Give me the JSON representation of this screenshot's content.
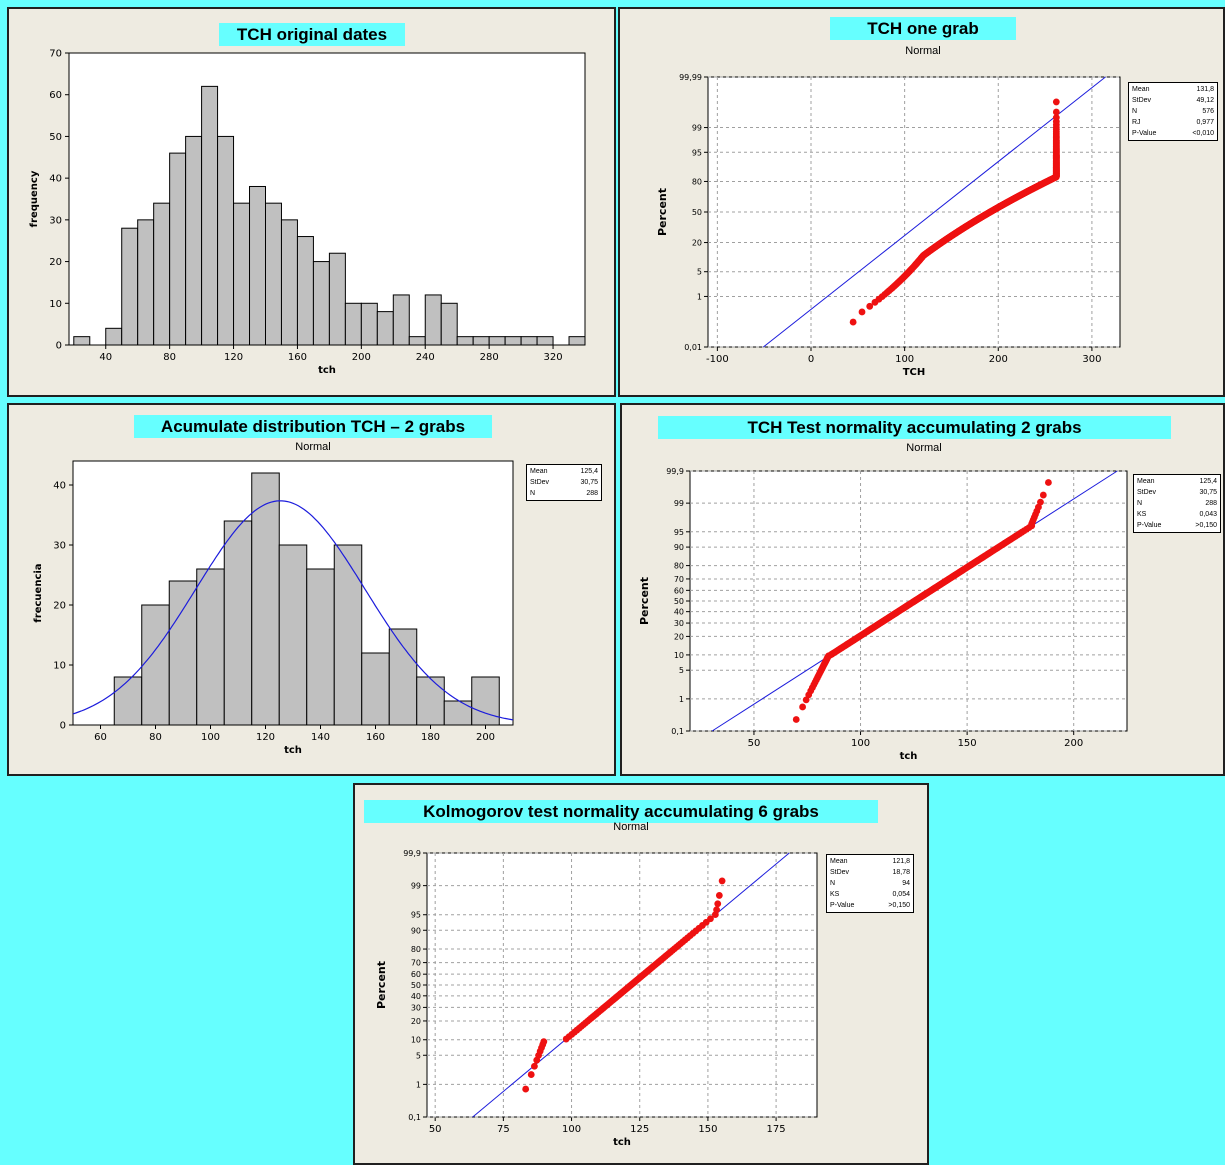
{
  "colors": {
    "background": "#66ffff",
    "panel": "#eeebe1",
    "bar": "#c0c0c0",
    "fit": "#1c1cdc",
    "point": "#ee1111"
  },
  "panels": {
    "p1": {
      "title": "TCH original dates"
    },
    "p2": {
      "title": "TCH one grab",
      "subtitle": "Normal"
    },
    "p3": {
      "title": "Acumulate distribution TCH – 2 grabs",
      "subtitle": "Normal"
    },
    "p4": {
      "title": "TCH Test normality accumulating 2 grabs",
      "subtitle": "Normal"
    },
    "p5": {
      "title": "Kolmogorov test normality accumulating 6 grabs",
      "subtitle": "Normal"
    }
  },
  "chart_data": [
    {
      "type": "bar",
      "title": "TCH original dates",
      "xlabel": "tch",
      "ylabel": "frequency",
      "bin_width": 10,
      "bin_starts": [
        20,
        30,
        40,
        50,
        60,
        70,
        80,
        90,
        100,
        110,
        120,
        130,
        140,
        150,
        160,
        170,
        180,
        190,
        200,
        210,
        220,
        230,
        240,
        250,
        260,
        270,
        280,
        290,
        300,
        310,
        320,
        330
      ],
      "values": [
        2,
        0,
        4,
        28,
        30,
        34,
        46,
        50,
        62,
        50,
        34,
        38,
        34,
        30,
        26,
        20,
        22,
        10,
        10,
        8,
        12,
        2,
        12,
        10,
        2,
        2,
        2,
        2,
        2,
        2,
        0,
        2
      ],
      "xlim": [
        17,
        340
      ],
      "ylim": [
        0,
        70
      ],
      "xticks": [
        40,
        80,
        120,
        160,
        200,
        240,
        280,
        320
      ],
      "yticks": [
        0,
        10,
        20,
        30,
        40,
        50,
        60,
        70
      ]
    },
    {
      "type": "scatter",
      "title": "TCH one grab",
      "subtitle": "Normal",
      "xlabel": "TCH",
      "ylabel": "Percent",
      "xlim": [
        -110,
        330
      ],
      "xticks": [
        -100,
        0,
        100,
        200,
        300
      ],
      "yticks": [
        "0,01",
        "1",
        "5",
        "20",
        "50",
        "80",
        "95",
        "99",
        "99,99"
      ],
      "fit": {
        "mean": 131.8,
        "stdev": 49.12
      },
      "stats": [
        {
          "label": "Mean",
          "value": "131,8"
        },
        {
          "label": "StDev",
          "value": "49,12"
        },
        {
          "label": "N",
          "value": "576"
        },
        {
          "label": "RJ",
          "value": "0,977"
        },
        {
          "label": "P-Value",
          "value": "<0,010"
        }
      ],
      "grid": true
    },
    {
      "type": "bar",
      "title": "Acumulate distribution TCH – 2 grabs",
      "subtitle": "Normal",
      "xlabel": "tch",
      "ylabel": "frecuencia",
      "bin_width": 10,
      "bin_starts": [
        65,
        75,
        85,
        95,
        105,
        115,
        125,
        135,
        145,
        155,
        165,
        175,
        185,
        195
      ],
      "values": [
        8,
        20,
        24,
        26,
        34,
        42,
        30,
        26,
        30,
        12,
        16,
        8,
        4,
        8
      ],
      "xlim": [
        50,
        210
      ],
      "ylim": [
        0,
        44
      ],
      "xticks": [
        60,
        80,
        100,
        120,
        140,
        160,
        180,
        200
      ],
      "yticks": [
        0,
        10,
        20,
        30,
        40
      ],
      "fit": {
        "mean": 125.4,
        "stdev": 30.75,
        "n": 288
      },
      "stats": [
        {
          "label": "Mean",
          "value": "125,4"
        },
        {
          "label": "StDev",
          "value": "30,75"
        },
        {
          "label": "N",
          "value": "288"
        }
      ]
    },
    {
      "type": "scatter",
      "title": "TCH Test normality accumulating 2 grabs",
      "subtitle": "Normal",
      "xlabel": "tch",
      "ylabel": "Percent",
      "xlim": [
        20,
        225
      ],
      "xticks": [
        50,
        100,
        150,
        200
      ],
      "yticks": [
        "0,1",
        "1",
        "5",
        "10",
        "20",
        "30",
        "40",
        "50",
        "60",
        "70",
        "80",
        "90",
        "95",
        "99",
        "99,9"
      ],
      "fit": {
        "mean": 125.4,
        "stdev": 30.75
      },
      "stats": [
        {
          "label": "Mean",
          "value": "125,4"
        },
        {
          "label": "StDev",
          "value": "30,75"
        },
        {
          "label": "N",
          "value": "288"
        },
        {
          "label": "KS",
          "value": "0,043"
        },
        {
          "label": "P-Value",
          "value": ">0,150"
        }
      ],
      "grid": true
    },
    {
      "type": "scatter",
      "title": "Kolmogorov test normality accumulating 6 grabs",
      "subtitle": "Normal",
      "xlabel": "tch",
      "ylabel": "Percent",
      "xlim": [
        47,
        190
      ],
      "xticks": [
        50,
        75,
        100,
        125,
        150,
        175
      ],
      "yticks": [
        "0,1",
        "1",
        "5",
        "10",
        "20",
        "30",
        "40",
        "50",
        "60",
        "70",
        "80",
        "90",
        "95",
        "99",
        "99,9"
      ],
      "fit": {
        "mean": 121.8,
        "stdev": 18.78
      },
      "stats": [
        {
          "label": "Mean",
          "value": "121,8"
        },
        {
          "label": "StDev",
          "value": "18,78"
        },
        {
          "label": "N",
          "value": "94"
        },
        {
          "label": "KS",
          "value": "0,054"
        },
        {
          "label": "P-Value",
          "value": ">0,150"
        }
      ],
      "grid": true
    }
  ]
}
